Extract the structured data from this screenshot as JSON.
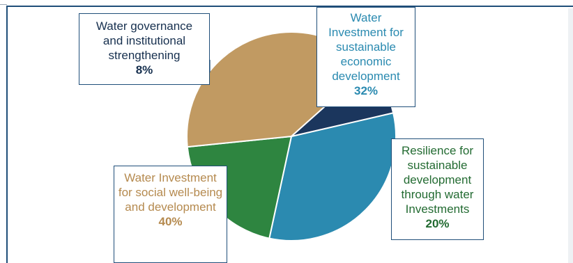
{
  "chart_data": {
    "type": "pie",
    "slices": [
      {
        "label": "Water Investment for sustainable economic development",
        "value": 32,
        "display": "32%",
        "color": "#2b8ab0"
      },
      {
        "label": "Resilience for sustainable development through water Investments",
        "value": 20,
        "display": "20%",
        "color": "#2e8540"
      },
      {
        "label": "Water Investment for social well-being and development",
        "value": 40,
        "display": "40%",
        "color": "#c19a62"
      },
      {
        "label": "Water governance and institutional strengthening",
        "value": 8,
        "display": "8%",
        "color": "#1b365d"
      }
    ],
    "start_angle_deg": -13,
    "direction": "clockwise"
  },
  "colors": {
    "frame": "#1f4e79",
    "slice_border": "#ffffff"
  }
}
